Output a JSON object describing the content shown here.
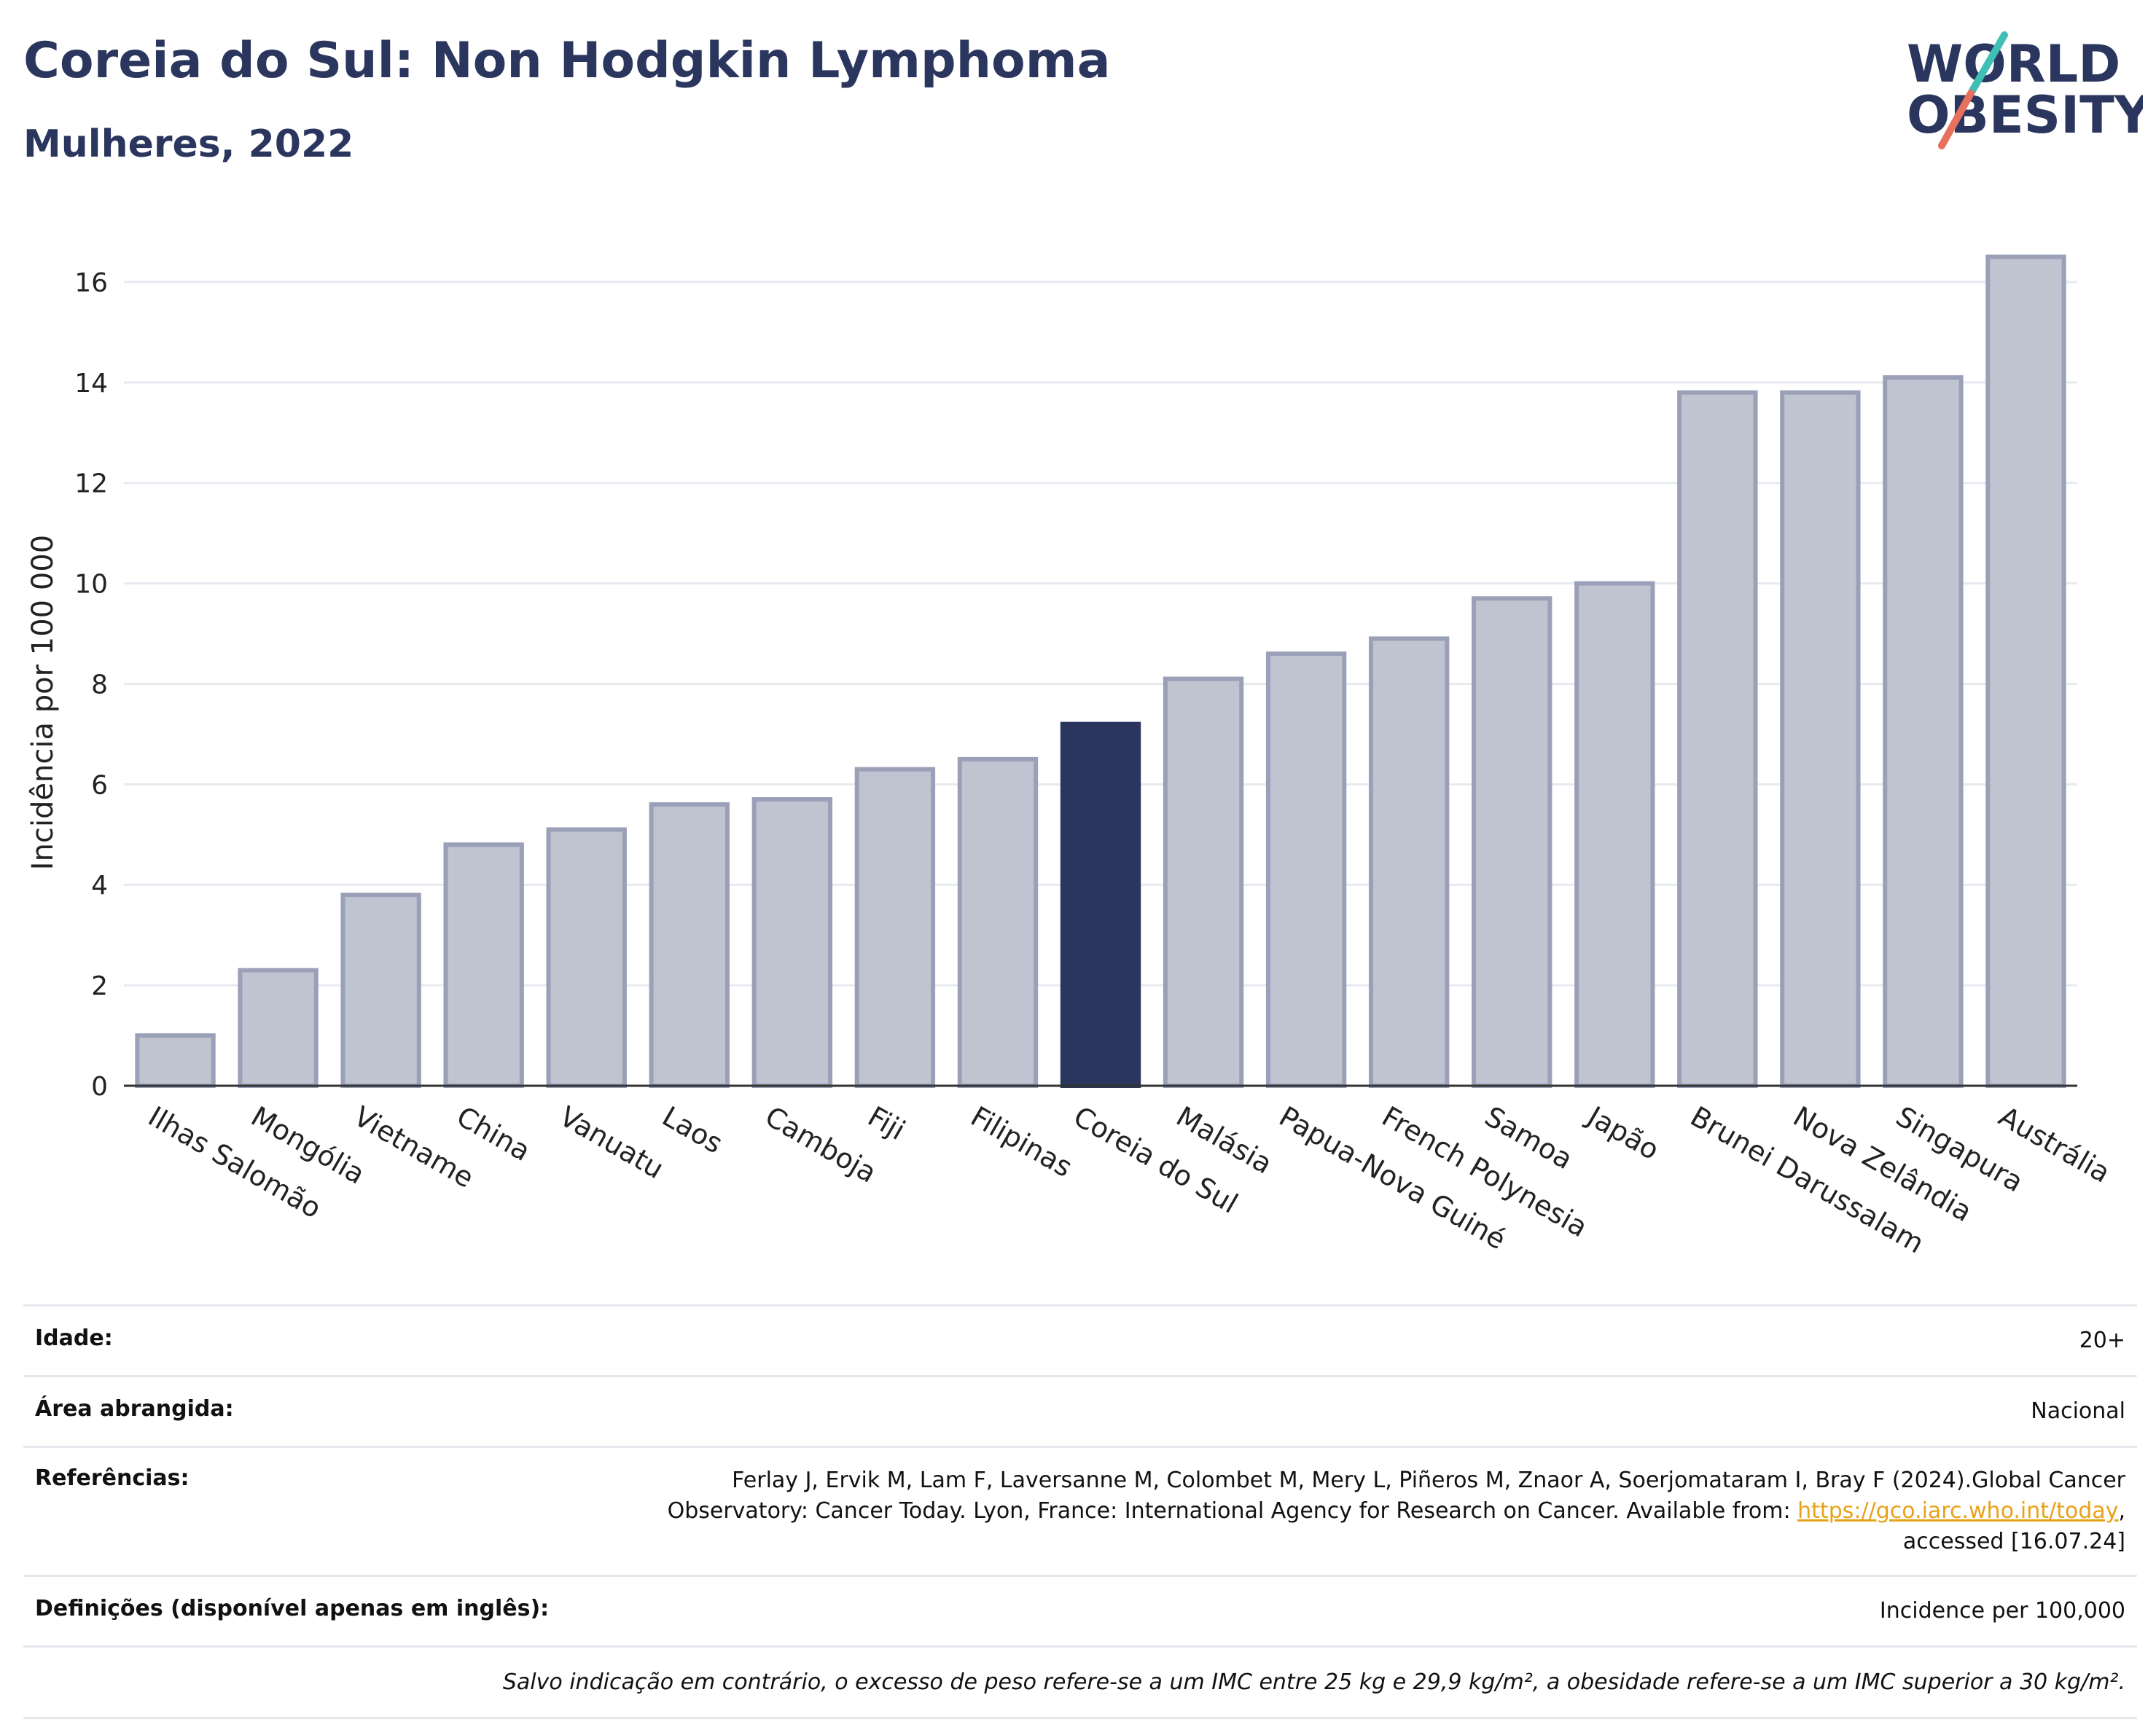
{
  "header": {
    "title": "Coreia do Sul: Non Hodgkin Lymphoma",
    "subtitle": "Mulheres, 2022"
  },
  "logo": {
    "line1": "WORLD",
    "line2": "OBESITY",
    "icon": "world-obesity-logo"
  },
  "chart_data": {
    "type": "bar",
    "title": "Coreia do Sul: Non Hodgkin Lymphoma",
    "subtitle": "Mulheres, 2022",
    "ylabel": "Incidência por 100 000",
    "xlabel": "",
    "ylim": [
      0,
      17
    ],
    "yticks": [
      0,
      2,
      4,
      6,
      8,
      10,
      12,
      14,
      16
    ],
    "grid": true,
    "highlight": "Coreia do Sul",
    "colors": {
      "bar": "#c0c3d0",
      "bar_edge": "#9aa0b8",
      "highlight": "#2b365e",
      "grid": "#e8eaf0",
      "axis": "#333333"
    },
    "categories": [
      "Ilhas Salomão",
      "Mongólia",
      "Vietname",
      "China",
      "Vanuatu",
      "Laos",
      "Camboja",
      "Fiji",
      "Filipinas",
      "Coreia do Sul",
      "Malásia",
      "Papua-Nova Guiné",
      "French Polynesia",
      "Samoa",
      "Japão",
      "Brunei Darussalam",
      "Nova Zelândia",
      "Singapura",
      "Austrália"
    ],
    "values": [
      1.0,
      2.3,
      3.8,
      4.8,
      5.1,
      5.6,
      5.7,
      6.3,
      6.5,
      7.2,
      8.1,
      8.6,
      8.9,
      9.7,
      10.0,
      13.8,
      13.8,
      14.1,
      16.5
    ]
  },
  "info": {
    "age_label": "Idade:",
    "age_value": "20+",
    "area_label": "Área abrangida:",
    "area_value": "Nacional",
    "ref_label": "Referências:",
    "ref_line1": "Ferlay J, Ervik M, Lam F, Laversanne M, Colombet M, Mery L, Piñeros M, Znaor A, Soerjomataram I, Bray F (2024).Global Cancer",
    "ref_line2_pre": "Observatory: Cancer Today. Lyon, France: International Agency for Research on Cancer. Available from: ",
    "ref_link": "https://gco.iarc.who.int/today",
    "ref_line2_post": ",",
    "ref_line3": "accessed [16.07.24]",
    "def_label": "Definições (disponível apenas em inglês):",
    "def_value": "Incidence per 100,000",
    "note": "Salvo indicação em contrário, o excesso de peso refere-se a um IMC entre 25 kg e 29,9 kg/m², a obesidade refere-se a um IMC superior a 30 kg/m²."
  }
}
